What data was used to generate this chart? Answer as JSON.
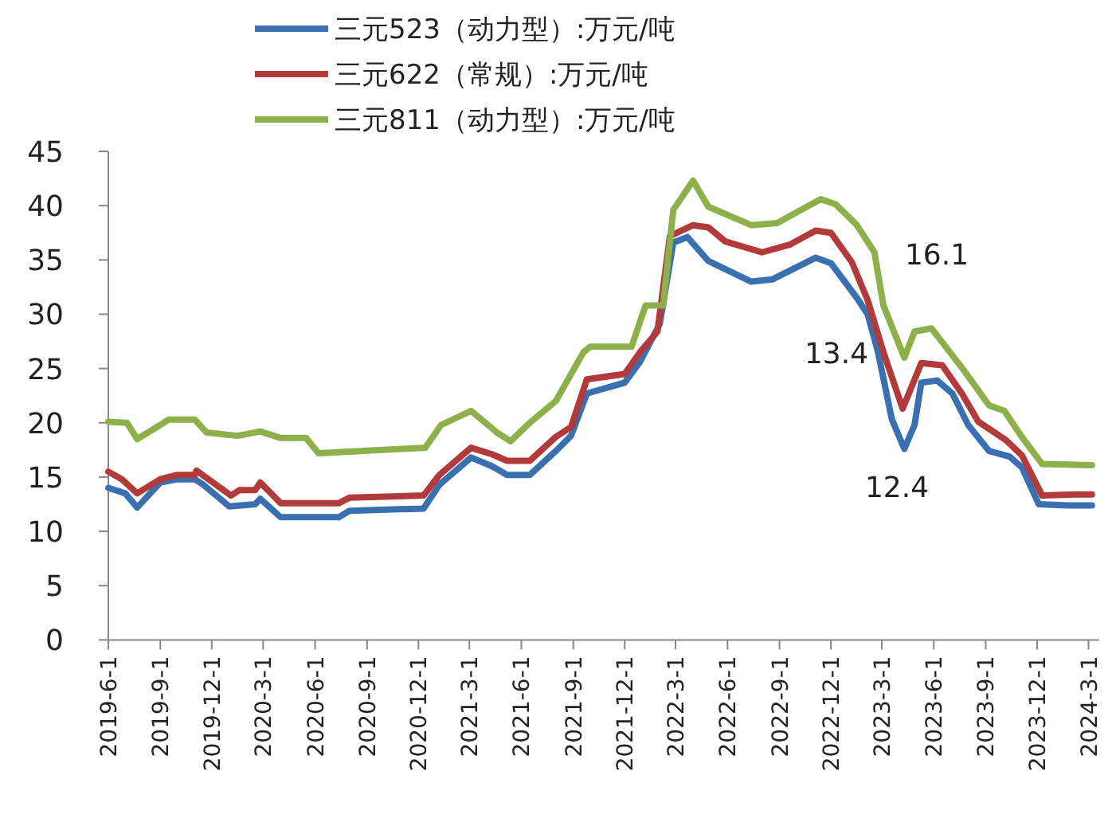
{
  "chart_data": {
    "type": "line",
    "xlim": [
      "2019-06-01",
      "2024-03-20"
    ],
    "xticks": [
      {
        "value": "2019-06-01",
        "label": "2019-6-1"
      },
      {
        "value": "2019-09-01",
        "label": "2019-9-1"
      },
      {
        "value": "2019-12-01",
        "label": "2019-12-1"
      },
      {
        "value": "2020-03-01",
        "label": "2020-3-1"
      },
      {
        "value": "2020-06-01",
        "label": "2020-6-1"
      },
      {
        "value": "2020-09-01",
        "label": "2020-9-1"
      },
      {
        "value": "2020-12-01",
        "label": "2020-12-1"
      },
      {
        "value": "2021-03-01",
        "label": "2021-3-1"
      },
      {
        "value": "2021-06-01",
        "label": "2021-6-1"
      },
      {
        "value": "2021-09-01",
        "label": "2021-9-1"
      },
      {
        "value": "2021-12-01",
        "label": "2021-12-1"
      },
      {
        "value": "2022-03-01",
        "label": "2022-3-1"
      },
      {
        "value": "2022-06-01",
        "label": "2022-6-1"
      },
      {
        "value": "2022-09-01",
        "label": "2022-9-1"
      },
      {
        "value": "2022-12-01",
        "label": "2022-12-1"
      },
      {
        "value": "2023-03-01",
        "label": "2023-3-1"
      },
      {
        "value": "2023-06-01",
        "label": "2023-6-1"
      },
      {
        "value": "2023-09-01",
        "label": "2023-9-1"
      },
      {
        "value": "2023-12-01",
        "label": "2023-12-1"
      },
      {
        "value": "2024-03-01",
        "label": "2024-3-1"
      }
    ],
    "ylim": [
      0,
      45
    ],
    "yticks": [
      0,
      5,
      10,
      15,
      20,
      25,
      30,
      35,
      40,
      45
    ],
    "grid": false,
    "legend": "top",
    "marker": "none",
    "line_style": "solid",
    "annotations": [
      "16.1",
      "13.4",
      "12.4"
    ],
    "series": [
      {
        "name": "三元523（动力型）:万元/吨",
        "color": "#3a6fb0",
        "x": [
          "2019-06-01",
          "2019-07-01",
          "2019-07-22",
          "2019-09-01",
          "2019-10-01",
          "2019-11-01",
          "2019-11-16",
          "2020-01-01",
          "2020-02-16",
          "2020-02-25",
          "2020-04-01",
          "2020-07-13",
          "2020-08-01",
          "2020-12-10",
          "2021-01-07",
          "2021-03-04",
          "2021-04-10",
          "2021-05-07",
          "2021-06-16",
          "2021-08-01",
          "2021-08-28",
          "2021-09-25",
          "2021-12-01",
          "2021-12-28",
          "2022-02-01",
          "2022-02-25",
          "2022-03-22",
          "2022-04-28",
          "2022-07-13",
          "2022-08-19",
          "2022-11-04",
          "2022-12-01",
          "2023-01-16",
          "2023-02-04",
          "2023-02-22",
          "2023-03-19",
          "2023-04-10",
          "2023-04-28",
          "2023-05-10",
          "2023-06-07",
          "2023-07-04",
          "2023-08-01",
          "2023-09-07",
          "2023-10-13",
          "2023-11-04",
          "2023-12-04",
          "2024-01-25",
          "2024-03-07"
        ],
        "values": [
          14.0,
          13.5,
          12.2,
          14.5,
          14.8,
          14.8,
          14.3,
          12.3,
          12.5,
          13.0,
          11.3,
          11.3,
          11.9,
          12.1,
          14.3,
          16.8,
          16.0,
          15.2,
          15.2,
          17.4,
          18.8,
          22.7,
          23.7,
          25.6,
          29.1,
          36.6,
          37.1,
          34.9,
          33.0,
          33.2,
          35.2,
          34.7,
          31.5,
          30.0,
          26.6,
          20.3,
          17.6,
          19.8,
          23.7,
          23.9,
          22.7,
          19.8,
          17.4,
          16.9,
          15.9,
          12.5,
          12.4,
          12.4
        ]
      },
      {
        "name": "三元622（常规）:万元/吨",
        "color": "#b23a3a",
        "x": [
          "2019-06-01",
          "2019-06-25",
          "2019-07-22",
          "2019-09-01",
          "2019-10-01",
          "2019-11-01",
          "2019-11-04",
          "2020-01-04",
          "2020-01-19",
          "2020-02-16",
          "2020-02-25",
          "2020-04-01",
          "2020-07-13",
          "2020-08-01",
          "2020-12-10",
          "2021-01-07",
          "2021-03-04",
          "2021-04-10",
          "2021-05-07",
          "2021-06-16",
          "2021-08-01",
          "2021-08-28",
          "2021-09-25",
          "2021-12-01",
          "2021-12-28",
          "2022-01-28",
          "2022-02-19",
          "2022-04-01",
          "2022-04-28",
          "2022-05-28",
          "2022-08-01",
          "2022-09-19",
          "2022-11-04",
          "2022-12-01",
          "2023-01-07",
          "2023-02-04",
          "2023-03-04",
          "2023-04-07",
          "2023-05-10",
          "2023-06-16",
          "2023-07-22",
          "2023-08-19",
          "2023-10-07",
          "2023-11-04",
          "2023-12-10",
          "2024-02-07",
          "2024-03-07"
        ],
        "values": [
          15.5,
          14.8,
          13.5,
          14.8,
          15.2,
          15.2,
          15.6,
          13.3,
          13.8,
          13.8,
          14.5,
          12.6,
          12.6,
          13.1,
          13.3,
          15.2,
          17.7,
          17.1,
          16.5,
          16.5,
          18.7,
          19.6,
          24.0,
          24.5,
          26.5,
          28.4,
          37.2,
          38.2,
          38.0,
          36.7,
          35.7,
          36.4,
          37.7,
          37.5,
          34.8,
          31.3,
          26.5,
          21.3,
          25.5,
          25.3,
          22.6,
          20.1,
          18.4,
          17.0,
          13.3,
          13.4,
          13.4
        ]
      },
      {
        "name": "三元811（动力型）:万元/吨",
        "color": "#8db04a",
        "x": [
          "2019-06-01",
          "2019-07-04",
          "2019-07-22",
          "2019-09-01",
          "2019-09-16",
          "2019-11-01",
          "2019-11-22",
          "2020-01-16",
          "2020-02-25",
          "2020-04-01",
          "2020-05-16",
          "2020-06-07",
          "2020-12-13",
          "2021-01-10",
          "2021-03-04",
          "2021-04-19",
          "2021-05-13",
          "2021-06-16",
          "2021-08-01",
          "2021-09-19",
          "2021-10-01",
          "2021-12-13",
          "2022-01-07",
          "2022-02-07",
          "2022-02-25",
          "2022-04-01",
          "2022-04-28",
          "2022-07-13",
          "2022-08-28",
          "2022-11-13",
          "2022-12-10",
          "2023-01-16",
          "2023-02-16",
          "2023-03-04",
          "2023-04-10",
          "2023-04-28",
          "2023-05-28",
          "2023-07-22",
          "2023-09-07",
          "2023-10-04",
          "2023-11-04",
          "2023-12-10",
          "2024-03-07"
        ],
        "values": [
          20.1,
          20.0,
          18.5,
          19.8,
          20.3,
          20.3,
          19.1,
          18.8,
          19.2,
          18.6,
          18.6,
          17.2,
          17.7,
          19.8,
          21.1,
          19.1,
          18.3,
          20.0,
          22.0,
          26.5,
          27.0,
          27.0,
          30.8,
          30.8,
          39.6,
          42.3,
          39.9,
          38.2,
          38.4,
          40.6,
          40.1,
          38.2,
          35.7,
          30.8,
          26.0,
          28.4,
          28.7,
          25.0,
          21.6,
          21.1,
          18.7,
          16.2,
          16.1
        ]
      }
    ]
  }
}
